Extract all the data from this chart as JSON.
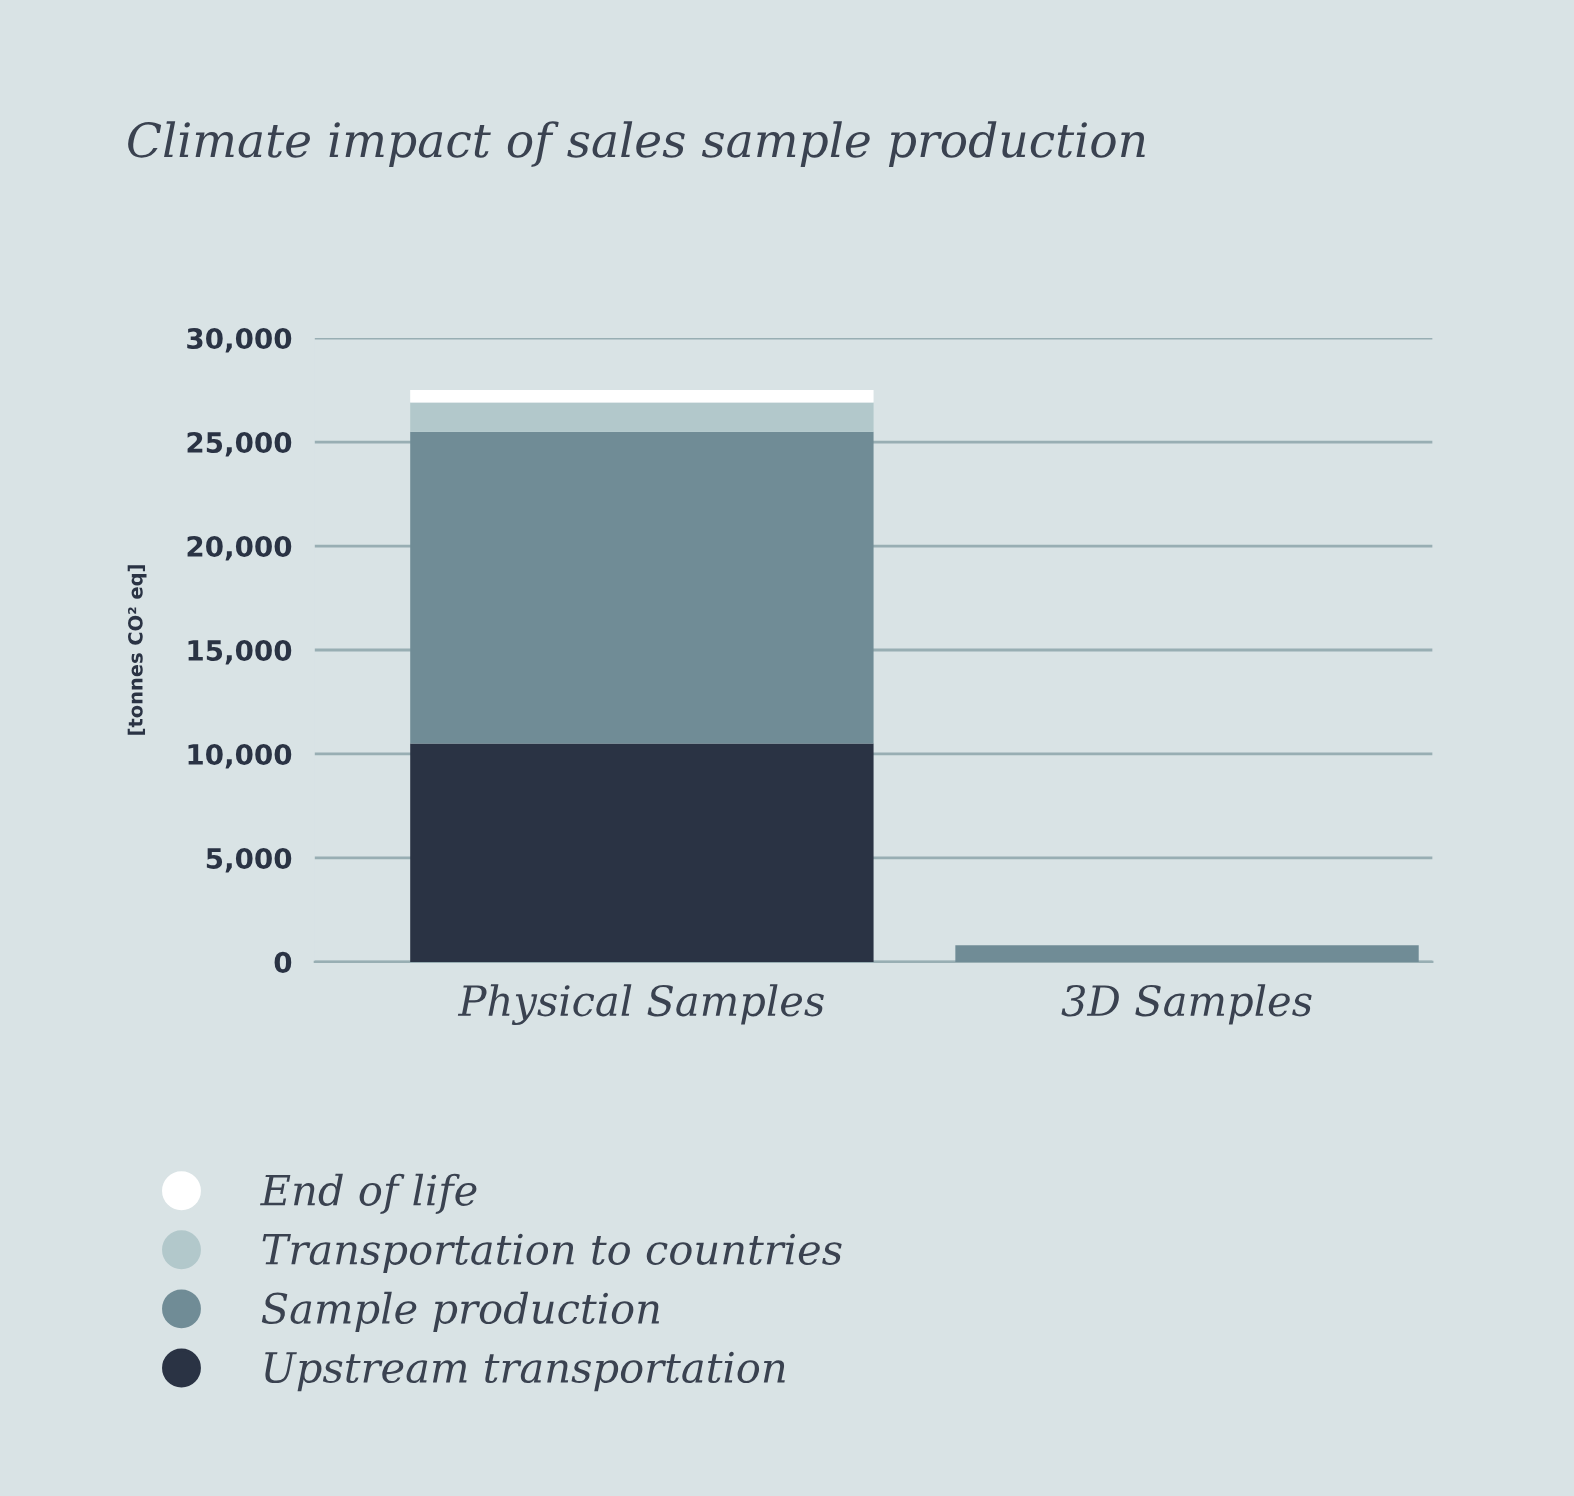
{
  "chart_data": {
    "type": "bar",
    "title": "Climate impact of sales sample production",
    "ylabel": "[tonnes CO² eq]",
    "categories": [
      "Physical Samples",
      "3D Samples"
    ],
    "stacked": true,
    "series": [
      {
        "name": "Upstream transportation",
        "color": "#2a3344",
        "values": [
          10500,
          0
        ]
      },
      {
        "name": "Sample production",
        "color": "#708c96",
        "values": [
          15000,
          800
        ]
      },
      {
        "name": "Transportation to countries",
        "color": "#b2c8cb",
        "values": [
          1400,
          0
        ]
      },
      {
        "name": "End of life",
        "color": "#ffffff",
        "values": [
          600,
          0
        ]
      }
    ],
    "ylim": [
      0,
      30000
    ],
    "yticks": [
      {
        "value": 0,
        "label": "0"
      },
      {
        "value": 5000,
        "label": "5,000"
      },
      {
        "value": 10000,
        "label": "10,000"
      },
      {
        "value": 15000,
        "label": "15,000"
      },
      {
        "value": 20000,
        "label": "20,000"
      },
      {
        "value": 25000,
        "label": "25,000"
      },
      {
        "value": 30000,
        "label": "30,000"
      }
    ],
    "grid": "y",
    "legend": "bottom left",
    "marker": "circle"
  }
}
